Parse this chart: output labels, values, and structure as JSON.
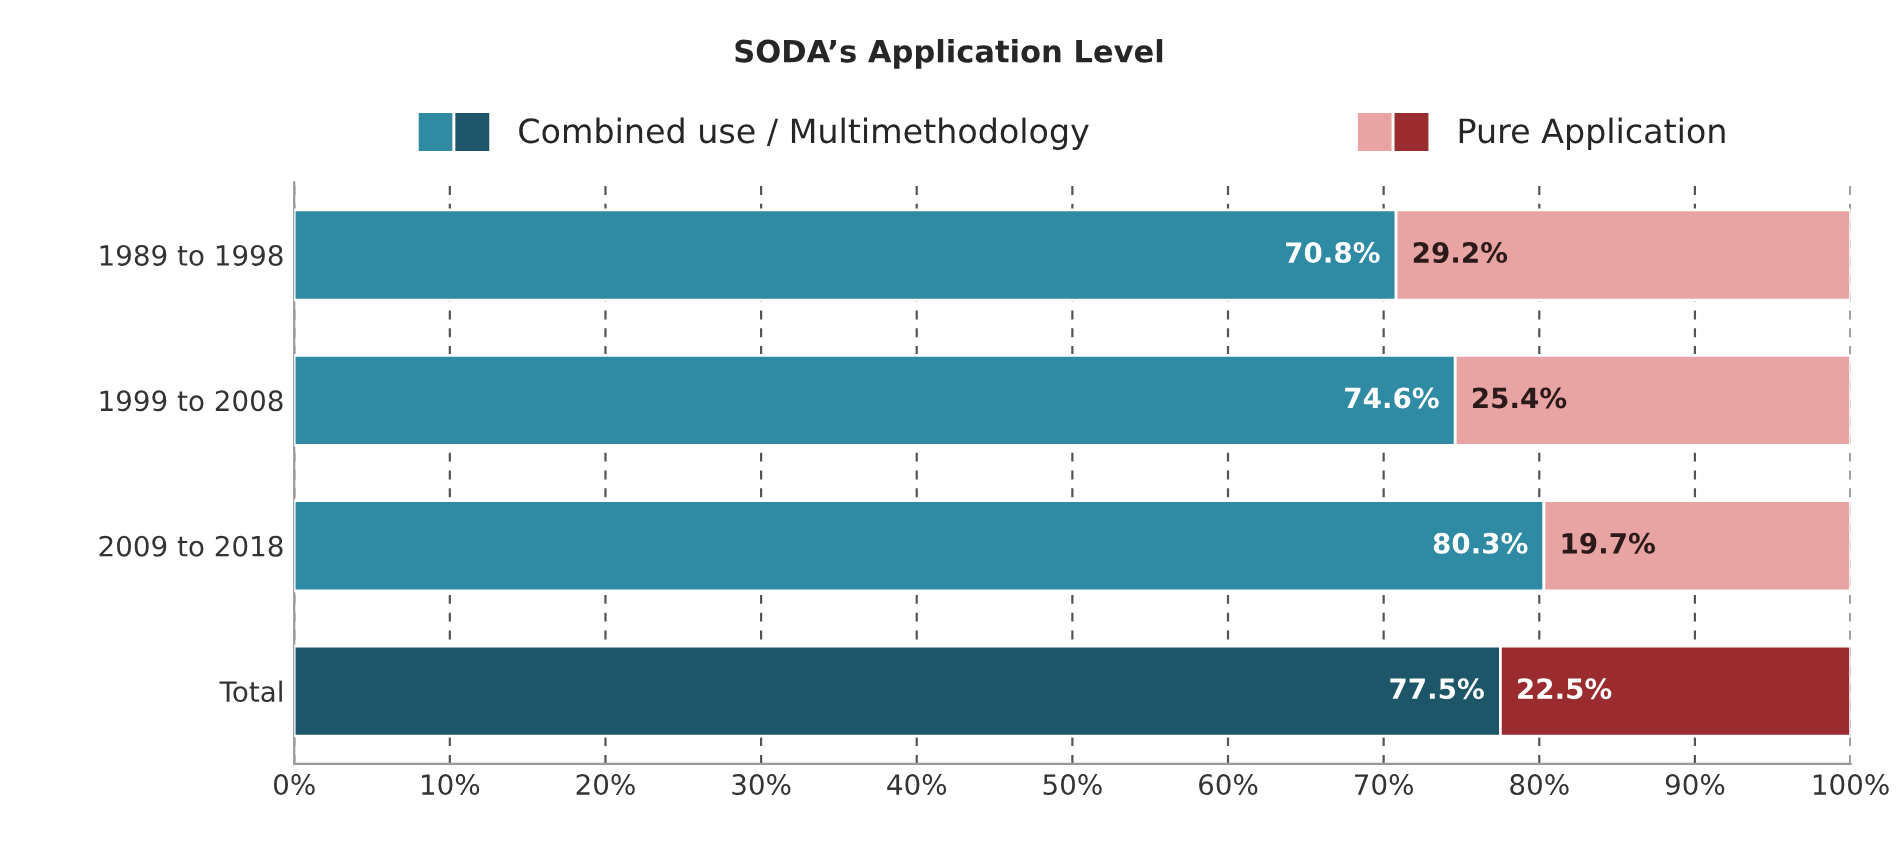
{
  "chart_data": {
    "type": "bar",
    "orientation": "horizontal",
    "stacked": true,
    "title": "SODA’s Application Level",
    "categories": [
      "1989 to 1998",
      "1999 to 2008",
      "2009 to 2018",
      "Total"
    ],
    "series": [
      {
        "name": "Combined use / Multimethodology",
        "color": "#2f8aa3",
        "colors": [
          "#2f8aa3",
          "#2f8aa3",
          "#2f8aa3",
          "#1d5569"
        ],
        "values": [
          70.8,
          74.6,
          80.3,
          77.5
        ],
        "value_labels": [
          "70.8%",
          "74.6%",
          "80.3%",
          "77.5%"
        ]
      },
      {
        "name": "Pure Application",
        "color": "#e8a3a3",
        "colors": [
          "#e8a3a3",
          "#e8a3a3",
          "#e8a3a3",
          "#9a2c2f"
        ],
        "values": [
          29.2,
          25.4,
          19.7,
          22.5
        ],
        "value_labels": [
          "29.2%",
          "25.4%",
          "19.7%",
          "22.5%"
        ]
      }
    ],
    "xlim": [
      0,
      100
    ],
    "xticks": [
      {
        "value": 0,
        "label": "0%"
      },
      {
        "value": 10,
        "label": "10%"
      },
      {
        "value": 20,
        "label": "20%"
      },
      {
        "value": 30,
        "label": "30%"
      },
      {
        "value": 40,
        "label": "40%"
      },
      {
        "value": 50,
        "label": "50%"
      },
      {
        "value": 60,
        "label": "60%"
      },
      {
        "value": 70,
        "label": "70%"
      },
      {
        "value": 80,
        "label": "80%"
      },
      {
        "value": 90,
        "label": "90%"
      },
      {
        "value": 100,
        "label": "100%"
      }
    ],
    "grid": "x",
    "legend": "top"
  }
}
